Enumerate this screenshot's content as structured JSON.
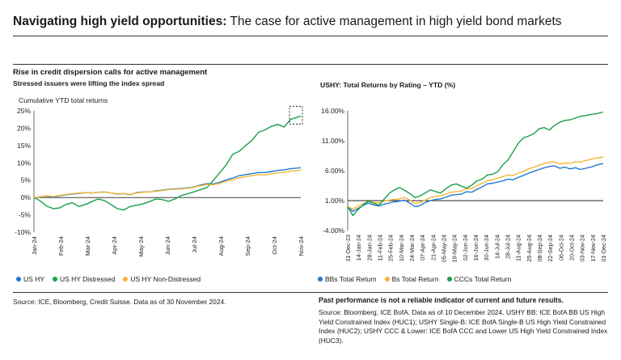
{
  "header": {
    "title_bold": "Navigating high yield opportunities:",
    "title_rest": " The case for active management in high yield bond markets"
  },
  "left": {
    "heading": "Rise in credit dispersion calls for active management",
    "subheading": "Stressed issuers were lifting the index spread",
    "source": "Source: ICE, Bloomberg, Credit Suisse. Data as of 30 November 2024."
  },
  "right": {
    "heading": "USHY: Total Returns by Rating – YTD (%)",
    "disclaimer": "Past performance is not a reliable indicator of current and future results.",
    "source": "Source: Bloomberg, ICE BofA. Data as of 10 December 2024. USHY BB: ICE BofA BB US High Yield Constrained Index (HUC1); USHY Single-B: ICE BofA Single-B US High Yield Constrained Index (HUC2); USHY CCC & Lower: ICE BofA CCC and Lower US High Yield Constrained Index (HUC3)."
  },
  "chart_data": [
    {
      "type": "line",
      "ylabel": "Cumulative YTD total returns",
      "ylim": [
        -10,
        25
      ],
      "y_ticks": [
        "-10%",
        "-5%",
        "0%",
        "5%",
        "10%",
        "15%",
        "20%",
        "25%"
      ],
      "y_tick_values": [
        -10,
        -5,
        0,
        5,
        10,
        15,
        20,
        25
      ],
      "x_ticks": [
        "Jan-24",
        "Feb-24",
        "Mar-24",
        "Apr-24",
        "May-24",
        "Jun-24",
        "Jul-24",
        "Aug-24",
        "Sep-24",
        "Oct-24",
        "Nov-24"
      ],
      "x": [
        0,
        0.25,
        0.5,
        0.75,
        1,
        1.25,
        1.5,
        1.75,
        2,
        2.25,
        2.5,
        2.75,
        3,
        3.25,
        3.5,
        3.75,
        4,
        4.25,
        4.5,
        4.75,
        5,
        5.25,
        5.5,
        5.75,
        6,
        6.25,
        6.5,
        6.75,
        7,
        7.25,
        7.5,
        7.75,
        8,
        8.25,
        8.5,
        8.75,
        9,
        9.25,
        9.5,
        9.75,
        10,
        10.4
      ],
      "series": [
        {
          "name": "US HY",
          "color": "#1f78d1",
          "values": [
            0,
            0.2,
            0.4,
            0.1,
            0.5,
            0.8,
            1.0,
            1.2,
            1.4,
            1.3,
            1.5,
            1.6,
            1.3,
            1.0,
            1.1,
            0.8,
            1.4,
            1.6,
            1.6,
            1.9,
            2.1,
            2.4,
            2.5,
            2.6,
            2.8,
            3.1,
            3.6,
            4.0,
            3.9,
            4.4,
            5.1,
            5.6,
            6.3,
            6.6,
            6.9,
            7.2,
            7.2,
            7.5,
            7.8,
            8.0,
            8.3,
            8.6
          ]
        },
        {
          "name": "US HY Distressed",
          "color": "#16a04b",
          "values": [
            0,
            -1.0,
            -2.5,
            -3.2,
            -3.0,
            -2.0,
            -1.5,
            -2.6,
            -2.0,
            -1.2,
            -0.4,
            -0.9,
            -2.0,
            -3.2,
            -3.6,
            -2.6,
            -2.2,
            -1.8,
            -1.2,
            -0.4,
            -0.6,
            -1.1,
            -0.4,
            0.6,
            1.1,
            1.7,
            2.3,
            2.9,
            5.0,
            7.2,
            9.5,
            12.5,
            13.3,
            15.0,
            16.5,
            18.8,
            19.5,
            20.5,
            21.1,
            20.3,
            22.5,
            23.5
          ]
        },
        {
          "name": "US HY Non-Distressed",
          "color": "#f2b830",
          "values": [
            0,
            0.2,
            0.5,
            0.3,
            0.6,
            0.9,
            1.1,
            1.3,
            1.4,
            1.3,
            1.5,
            1.6,
            1.3,
            1.1,
            1.1,
            0.9,
            1.3,
            1.5,
            1.6,
            1.8,
            2.0,
            2.3,
            2.4,
            2.5,
            2.7,
            3.0,
            3.4,
            3.8,
            3.7,
            4.1,
            4.7,
            5.1,
            5.7,
            6.0,
            6.3,
            6.6,
            6.5,
            6.8,
            7.1,
            7.3,
            7.6,
            7.9
          ]
        }
      ]
    },
    {
      "type": "line",
      "title": "USHY: Total Returns by Rating – YTD (%)",
      "ylim": [
        -4,
        16
      ],
      "y_ticks": [
        "-4.00%",
        "1.00%",
        "6.00%",
        "11.00%",
        "16.00%"
      ],
      "y_tick_values": [
        -4,
        1,
        6,
        11,
        16
      ],
      "x_ticks": [
        "31-Dec-23",
        "14-Jan-24",
        "28-Jan-24",
        "11-Feb-24",
        "25-Feb-24",
        "10-Mar-24",
        "24-Mar-24",
        "07-Apr-24",
        "21-Apr-24",
        "05-May-24",
        "19-May-24",
        "02-Jun-24",
        "16-Jun-24",
        "30-Jun-24",
        "14-Jul-24",
        "28-Jul-24",
        "11-Aug-24",
        "25-Aug-24",
        "08-Sep-24",
        "22-Sep-24",
        "06-Oct-24",
        "20-Oct-24",
        "03-Nov-24",
        "17-Nov-24",
        "01-Dec-24"
      ],
      "x": [
        0,
        0.5,
        1,
        1.5,
        2,
        2.5,
        3,
        3.5,
        4,
        4.5,
        5,
        5.5,
        6,
        6.5,
        7,
        7.5,
        8,
        8.5,
        9,
        9.5,
        10,
        10.5,
        11,
        11.5,
        12,
        12.5,
        13,
        13.5,
        14,
        14.5,
        15,
        15.5,
        16,
        16.5,
        17,
        17.5,
        18,
        18.5,
        19,
        19.5,
        20,
        20.5,
        21,
        21.5,
        22,
        22.5,
        23,
        23.5,
        24,
        24.7
      ],
      "series": [
        {
          "name": "BBs Total Return",
          "color": "#1f78d1",
          "values": [
            0,
            -0.8,
            -0.3,
            0.2,
            0.6,
            0.3,
            0.1,
            0.4,
            0.6,
            0.8,
            0.9,
            1.1,
            0.6,
            0.0,
            0.2,
            0.7,
            1.0,
            1.2,
            1.3,
            1.6,
            1.9,
            2.0,
            2.1,
            2.5,
            2.4,
            2.9,
            3.3,
            3.8,
            3.9,
            4.1,
            4.3,
            4.6,
            4.5,
            4.9,
            5.2,
            5.6,
            5.9,
            6.2,
            6.5,
            6.7,
            6.8,
            6.4,
            6.6,
            6.3,
            6.5,
            6.2,
            6.4,
            6.6,
            6.9,
            7.2
          ]
        },
        {
          "name": "Bs Total Return",
          "color": "#f2b830",
          "values": [
            0,
            -0.4,
            0.1,
            0.5,
            0.9,
            0.7,
            0.6,
            0.9,
            1.1,
            1.2,
            1.3,
            1.5,
            1.1,
            0.5,
            0.7,
            1.1,
            1.5,
            1.7,
            1.8,
            2.1,
            2.4,
            2.5,
            2.6,
            3.0,
            3.0,
            3.5,
            3.9,
            4.3,
            4.5,
            4.8,
            5.0,
            5.3,
            5.2,
            5.6,
            5.9,
            6.3,
            6.6,
            6.9,
            7.2,
            7.4,
            7.5,
            7.1,
            7.3,
            7.2,
            7.5,
            7.4,
            7.7,
            7.9,
            8.1,
            8.3
          ]
        },
        {
          "name": "CCCs Total Return",
          "color": "#16a04b",
          "values": [
            0,
            -1.5,
            -0.5,
            0.3,
            0.9,
            0.6,
            0.2,
            1.2,
            2.2,
            2.8,
            3.2,
            2.7,
            2.2,
            1.5,
            1.8,
            2.3,
            2.8,
            2.5,
            2.3,
            3.0,
            3.6,
            3.8,
            3.4,
            3.1,
            3.6,
            4.3,
            4.6,
            5.3,
            5.4,
            5.8,
            7.0,
            7.8,
            9.2,
            10.6,
            11.5,
            11.8,
            12.2,
            13.0,
            13.2,
            12.8,
            13.6,
            14.1,
            14.4,
            14.5,
            14.8,
            15.1,
            15.2,
            15.4,
            15.5,
            15.8
          ]
        }
      ]
    }
  ]
}
